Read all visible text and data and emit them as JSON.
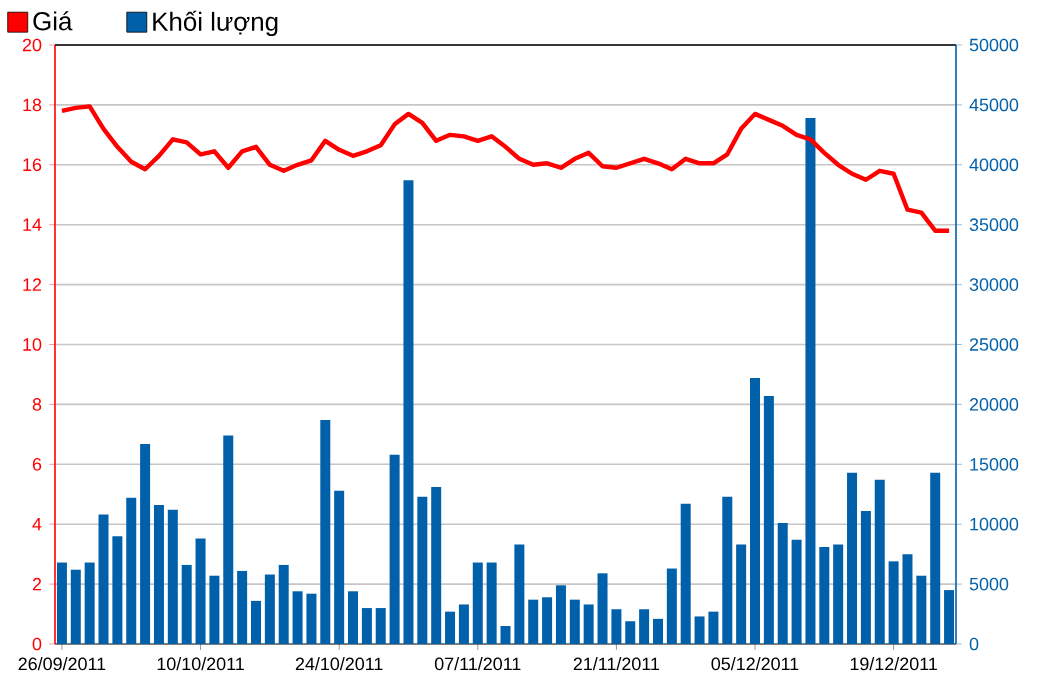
{
  "chart_data": {
    "type": "bar",
    "categories": [
      "26/09/2011",
      null,
      null,
      null,
      null,
      null,
      null,
      null,
      null,
      null,
      "10/10/2011",
      null,
      null,
      null,
      null,
      null,
      null,
      null,
      null,
      null,
      "24/10/2011",
      null,
      null,
      null,
      null,
      null,
      null,
      null,
      null,
      null,
      "07/11/2011",
      null,
      null,
      null,
      null,
      null,
      null,
      null,
      null,
      null,
      "21/11/2011",
      null,
      null,
      null,
      null,
      null,
      null,
      null,
      null,
      null,
      "05/12/2011",
      null,
      null,
      null,
      null,
      null,
      null,
      null,
      null,
      null,
      "19/12/2011",
      null,
      null,
      null,
      null
    ],
    "series": [
      {
        "name": "Giá",
        "type": "line",
        "color": "#ff0000",
        "values": [
          17.8,
          17.9,
          17.95,
          17.2,
          16.6,
          16.1,
          15.85,
          16.3,
          16.85,
          16.75,
          16.35,
          16.45,
          15.9,
          16.45,
          16.6,
          16.0,
          15.8,
          16.0,
          16.15,
          16.8,
          16.5,
          16.3,
          16.45,
          16.65,
          17.35,
          17.7,
          17.4,
          16.8,
          17.0,
          16.95,
          16.8,
          16.95,
          16.6,
          16.2,
          16.0,
          16.05,
          15.9,
          16.2,
          16.4,
          15.95,
          15.9,
          16.05,
          16.2,
          16.05,
          15.85,
          16.2,
          16.05,
          16.05,
          16.35,
          17.2,
          17.7,
          17.5,
          17.3,
          17.0,
          16.85,
          16.4,
          16.0,
          15.7,
          15.5,
          15.8,
          15.7,
          14.5,
          14.4,
          13.8,
          13.8
        ]
      },
      {
        "name": "Khối lượng",
        "axis": "y2",
        "color": "#0060aa",
        "values": [
          6800,
          6200,
          6800,
          10800,
          9000,
          12200,
          16700,
          11600,
          11200,
          6600,
          8800,
          5700,
          17400,
          6100,
          3600,
          5800,
          6600,
          4400,
          4200,
          18700,
          12800,
          4400,
          3000,
          3000,
          15800,
          38700,
          12300,
          13100,
          2700,
          3300,
          6800,
          6800,
          1500,
          8300,
          3700,
          3900,
          4900,
          3700,
          3300,
          5900,
          2900,
          1900,
          2900,
          2100,
          6300,
          11700,
          2300,
          2700,
          12300,
          8300,
          22200,
          20700,
          10100,
          8700,
          43900,
          8100,
          8300,
          14300,
          11100,
          13700,
          6900,
          7500,
          5700,
          14300,
          4500
        ]
      }
    ],
    "ylim": [
      0,
      20
    ],
    "yticks": [
      0,
      2,
      4,
      6,
      8,
      10,
      12,
      14,
      16,
      18,
      20
    ],
    "y2lim": [
      0,
      50000
    ],
    "y2ticks": [
      0,
      5000,
      10000,
      15000,
      20000,
      25000,
      30000,
      35000,
      40000,
      45000,
      50000
    ],
    "grid": "y",
    "legend": "top left"
  }
}
